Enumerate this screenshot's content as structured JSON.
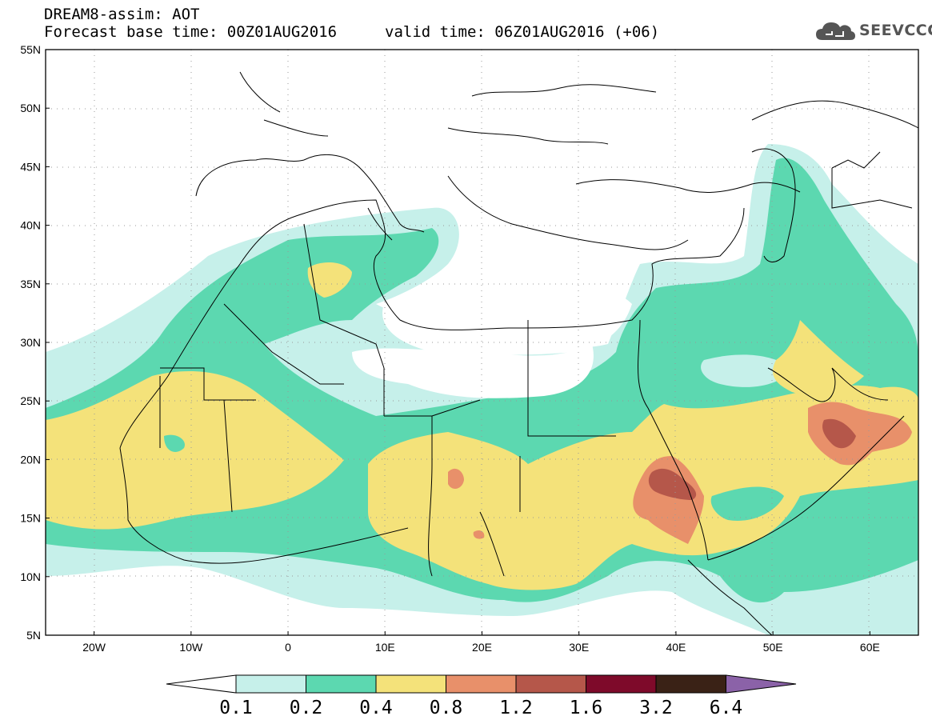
{
  "header": {
    "model_line": "DREAM8-assim: AOT",
    "base_time_line": "Forecast base time: 00Z01AUG2016",
    "valid_time_line": "valid time: 06Z01AUG2016 (+06)"
  },
  "logo": {
    "text": "SEEVCCC",
    "icon": "cloud-icon"
  },
  "map": {
    "lon_range": [
      -25,
      65
    ],
    "lat_range": [
      5,
      55
    ],
    "lat_labels": [
      "55N",
      "50N",
      "45N",
      "40N",
      "35N",
      "30N",
      "25N",
      "20N",
      "15N",
      "10N",
      "5N"
    ],
    "lon_labels": [
      "20W",
      "10W",
      "0",
      "10E",
      "20E",
      "30E",
      "40E",
      "50E",
      "60E"
    ]
  },
  "colorbar": {
    "labels": [
      "0.1",
      "0.2",
      "0.4",
      "0.8",
      "1.2",
      "1.6",
      "3.2",
      "6.4"
    ],
    "colors": [
      "#c6f0ea",
      "#5cd8b0",
      "#f4e27a",
      "#e8906a",
      "#b5574a",
      "#7e0a2a",
      "#3a2216",
      "#8b62a8"
    ]
  }
}
